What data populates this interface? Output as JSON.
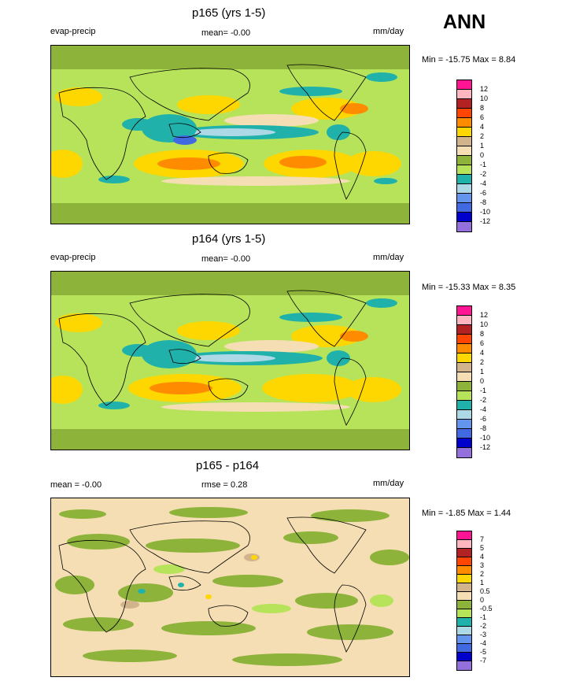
{
  "season": "ANN",
  "panels": [
    {
      "title": "p165 (yrs 1-5)",
      "left_label": "evap-precip",
      "center_label": "mean=  -0.00",
      "right_label": "mm/day",
      "minmax": "Min = -15.75 Max =   8.84",
      "colorbar_labels": [
        "12",
        "10",
        "8",
        "6",
        "4",
        "2",
        "1",
        "0",
        "-1",
        "-2",
        "-4",
        "-6",
        "-8",
        "-10",
        "-12"
      ],
      "colorbar_colors": [
        "#ff1493",
        "#ffb6c1",
        "#b22222",
        "#ff4500",
        "#ff8c00",
        "#ffd700",
        "#d2b48c",
        "#f5deb3",
        "#8db33a",
        "#b6e35a",
        "#20b2aa",
        "#add8e6",
        "#6495ed",
        "#4169e1",
        "#0000cd",
        "#9370db"
      ]
    },
    {
      "title": "p164 (yrs 1-5)",
      "left_label": "evap-precip",
      "center_label": "mean=  -0.00",
      "right_label": "mm/day",
      "minmax": "Min = -15.33 Max =   8.35",
      "colorbar_labels": [
        "12",
        "10",
        "8",
        "6",
        "4",
        "2",
        "1",
        "0",
        "-1",
        "-2",
        "-4",
        "-6",
        "-8",
        "-10",
        "-12"
      ],
      "colorbar_colors": [
        "#ff1493",
        "#ffb6c1",
        "#b22222",
        "#ff4500",
        "#ff8c00",
        "#ffd700",
        "#d2b48c",
        "#f5deb3",
        "#8db33a",
        "#b6e35a",
        "#20b2aa",
        "#add8e6",
        "#6495ed",
        "#4169e1",
        "#0000cd",
        "#9370db"
      ]
    },
    {
      "title": "p165 - p164",
      "left_label": "mean =  -0.00",
      "center_label": "rmse =   0.28",
      "right_label": "mm/day",
      "minmax": "Min =  -1.85 Max =   1.44",
      "colorbar_labels": [
        "7",
        "5",
        "4",
        "3",
        "2",
        "1",
        "0.5",
        "0",
        "-0.5",
        "-1",
        "-2",
        "-3",
        "-4",
        "-5",
        "-7"
      ],
      "colorbar_colors": [
        "#ff1493",
        "#ffb6c1",
        "#b22222",
        "#ff4500",
        "#ff8c00",
        "#ffd700",
        "#d2b48c",
        "#f5deb3",
        "#8db33a",
        "#b6e35a",
        "#20b2aa",
        "#add8e6",
        "#6495ed",
        "#4169e1",
        "#0000cd",
        "#9370db"
      ]
    }
  ],
  "colors": {
    "land_green": "#8db33a",
    "light_green": "#b6e35a",
    "tan": "#f5deb3",
    "yellow": "#ffd700",
    "orange": "#ff8c00",
    "teal": "#20b2aa",
    "light_blue": "#add8e6",
    "blue": "#4169e1",
    "coast": "#000000"
  }
}
